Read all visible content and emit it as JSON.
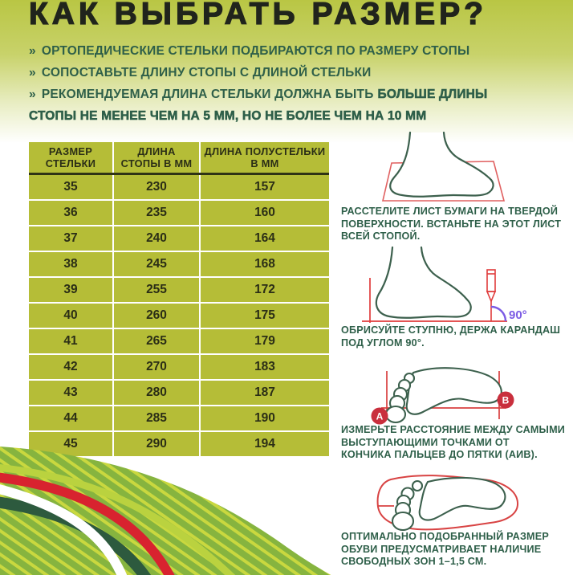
{
  "title": "КАК ВЫБРАТЬ РАЗМЕР?",
  "intro_bullets": [
    {
      "marker": "»",
      "text": "ОРТОПЕДИЧЕСКИЕ СТЕЛЬКИ ПОДБИРАЮТСЯ ПО РАЗМЕРУ СТОПЫ"
    },
    {
      "marker": "»",
      "text": "СОПОСТАВЬТЕ ДЛИНУ СТОПЫ С ДЛИНОЙ СТЕЛЬКИ"
    },
    {
      "marker": "»",
      "text": "РЕКОМЕНДУЕМАЯ ДЛИНА СТЕЛЬКИ ДОЛЖНА БЫТЬ",
      "text_strong": "БОЛЬШЕ ДЛИНЫ",
      "text_strong_line2": "СТОПЫ НЕ МЕНЕЕ ЧЕМ НА 5 ММ, НО НЕ БОЛЕЕ ЧЕМ НА 10 ММ"
    }
  ],
  "size_table": {
    "columns": [
      "РАЗМЕР СТЕЛЬКИ",
      "ДЛИНА СТОПЫ В ММ",
      "ДЛИНА ПОЛУСТЕЛЬКИ В ММ"
    ],
    "rows": [
      [
        "35",
        "230",
        "157"
      ],
      [
        "36",
        "235",
        "160"
      ],
      [
        "37",
        "240",
        "164"
      ],
      [
        "38",
        "245",
        "168"
      ],
      [
        "39",
        "255",
        "172"
      ],
      [
        "40",
        "260",
        "175"
      ],
      [
        "41",
        "265",
        "179"
      ],
      [
        "42",
        "270",
        "183"
      ],
      [
        "43",
        "280",
        "187"
      ],
      [
        "44",
        "285",
        "190"
      ],
      [
        "45",
        "290",
        "194"
      ]
    ]
  },
  "steps": [
    {
      "illustration": "foot-standing-on-paper-sheet",
      "caption_lines": [
        "РАССТЕЛИТЕ ЛИСТ БУМАГИ НА ТВЕРДОЙ",
        "ПОВЕРХНОСТИ. ВСТАНЬТЕ НА ЭТОТ ЛИСТ",
        "ВСЕЙ СТОПОЙ."
      ]
    },
    {
      "illustration": "foot-traced-with-pencil",
      "angle_label": "90°",
      "caption_lines": [
        "ОБРИСУЙТЕ СТУПНЮ, ДЕРЖА КАРАНДАШ",
        "ПОД УГЛОМ 90°."
      ]
    },
    {
      "illustration": "footprint-measure-points",
      "point_a": "А",
      "point_b": "В",
      "caption_lines": [
        "ИЗМЕРЬТЕ РАССТОЯНИЕ МЕЖДУ САМЫМИ",
        "ВЫСТУПАЮЩИМИ ТОЧКАМИ ОТ",
        "КОНЧИКА ПАЛЬЦЕВ ДО ПЯТКИ (АИВ)."
      ]
    },
    {
      "illustration": "footprint-inside-shoe-outline",
      "caption_lines": [
        "ОПТИМАЛЬНО ПОДОБРАННЫЙ РАЗМЕР",
        "ОБУВИ ПРЕДУСМАТРИВАЕТ НАЛИЧИЕ",
        "СВОБОДНЫХ ЗОН 1–1,5 СМ."
      ]
    }
  ],
  "colors": {
    "text_green": "#2e5f49",
    "title_color": "#20241c",
    "table_bg": "#b5bd37",
    "table_text": "#2b2e16",
    "outline_green": "#3c604d",
    "red_line": "#d84040",
    "paper_red": "#e06060",
    "badge_red": "#c92f3d",
    "angle_purple": "#7b5be4",
    "wave_red": "#d8232f",
    "wave_dark_green": "#2d5a3e",
    "wave_chartreuse": "#bad23f",
    "wave_green": "#86b43f",
    "hero_top": "#b9c644"
  }
}
